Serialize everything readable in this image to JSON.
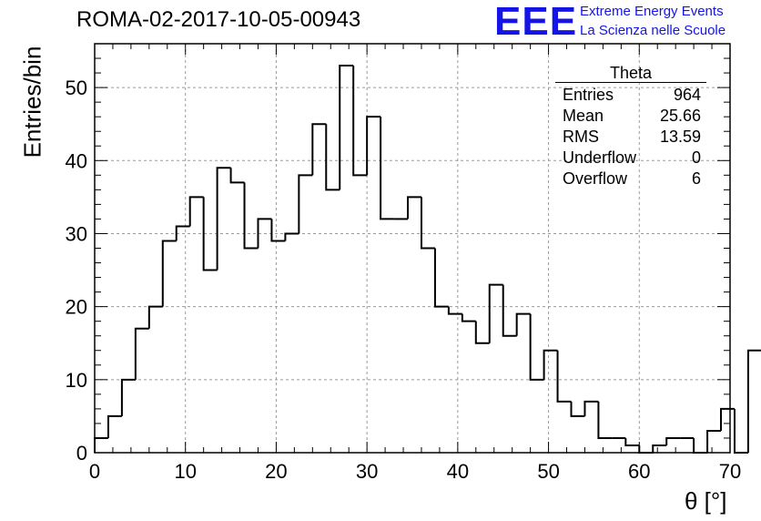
{
  "title": "ROMA-02-2017-10-05-00943",
  "logo": {
    "mark": "EEE",
    "line1": "Extreme Energy Events",
    "line2": "La Scienza nelle Scuole",
    "color": "#1414e6"
  },
  "stats": {
    "title": "Theta",
    "rows": [
      {
        "label": "Entries",
        "value": "964"
      },
      {
        "label": "Mean",
        "value": "25.66"
      },
      {
        "label": "RMS",
        "value": "13.59"
      },
      {
        "label": "Underflow",
        "value": "0"
      },
      {
        "label": "Overflow",
        "value": "6"
      }
    ]
  },
  "chart_data": {
    "type": "bar",
    "histogram": true,
    "title": "ROMA-02-2017-10-05-00943",
    "xlabel": "θ [°]",
    "ylabel": "Entries/bin",
    "xlim": [
      0,
      70
    ],
    "ylim": [
      0,
      56
    ],
    "x_ticks": [
      0,
      10,
      20,
      30,
      40,
      50,
      60,
      70
    ],
    "y_ticks": [
      0,
      10,
      20,
      30,
      40,
      50
    ],
    "grid": true,
    "line_color": "#000000",
    "bin_width": 1.5,
    "bin_start": 0,
    "values": [
      2,
      5,
      10,
      17,
      20,
      29,
      31,
      35,
      25,
      39,
      37,
      28,
      32,
      29,
      30,
      38,
      45,
      36,
      53,
      38,
      46,
      32,
      32,
      35,
      28,
      20,
      19,
      18,
      15,
      23,
      16,
      19,
      10,
      14,
      7,
      5,
      7,
      2,
      2,
      1,
      0,
      1,
      2,
      2,
      0,
      3,
      6,
      0,
      14
    ],
    "legend": "top-right"
  }
}
